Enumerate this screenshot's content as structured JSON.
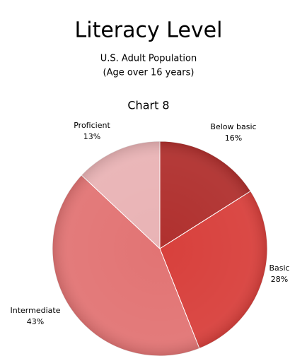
{
  "chart_data": {
    "type": "pie",
    "title": "Literacy Level",
    "subtitle": [
      "U.S. Adult Population",
      "(Age over 16 years)"
    ],
    "chart_label": "Chart 8",
    "categories": [
      "Below basic",
      "Basic",
      "Intermediate",
      "Proficient"
    ],
    "values": [
      16,
      28,
      43,
      13
    ],
    "value_labels": [
      "16%",
      "28%",
      "43%",
      "13%"
    ],
    "colors": [
      "#b0302e",
      "#d8403c",
      "#e27474",
      "#e9b3b5"
    ]
  }
}
